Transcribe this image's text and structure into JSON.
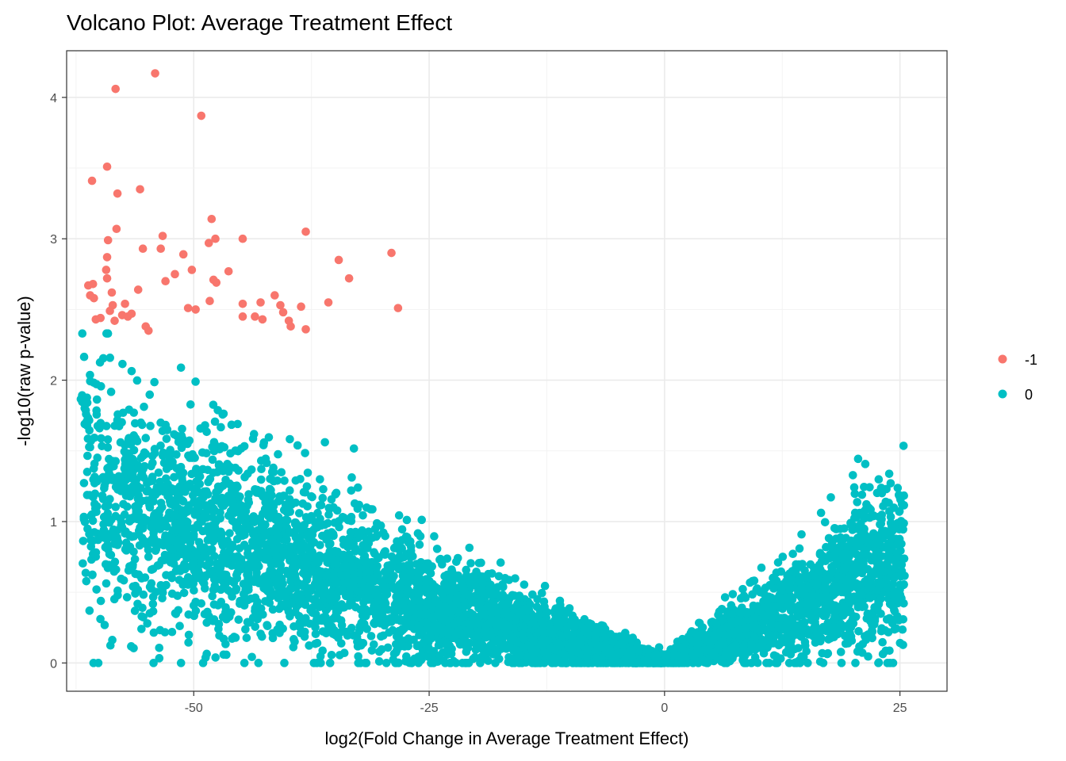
{
  "chart_data": {
    "type": "scatter",
    "title": "Volcano Plot: Average Treatment Effect",
    "xlabel": "log2(Fold Change in Average Treatment Effect)",
    "ylabel": "-log10(raw p-value)",
    "xlim": [
      -63.5,
      30
    ],
    "ylim": [
      -0.2,
      4.33
    ],
    "x_ticks": [
      -50,
      -25,
      0,
      25
    ],
    "x_tick_labels": [
      "-50",
      "-25",
      "0",
      "25"
    ],
    "y_ticks": [
      0,
      1,
      2,
      3,
      4
    ],
    "y_tick_labels": [
      "0",
      "1",
      "2",
      "3",
      "4"
    ],
    "grid": true,
    "legend_position": "right",
    "series": [
      {
        "name": "-1",
        "color": "#F8766D",
        "points": [
          [
            -54.1,
            4.17
          ],
          [
            -58.3,
            4.06
          ],
          [
            -49.2,
            3.87
          ],
          [
            -59.2,
            3.51
          ],
          [
            -60.8,
            3.41
          ],
          [
            -58.1,
            3.32
          ],
          [
            -55.7,
            3.35
          ],
          [
            -48.1,
            3.14
          ],
          [
            -58.2,
            3.07
          ],
          [
            -53.3,
            3.02
          ],
          [
            -47.7,
            3.0
          ],
          [
            -48.4,
            2.97
          ],
          [
            -59.1,
            2.99
          ],
          [
            -55.4,
            2.93
          ],
          [
            -53.5,
            2.93
          ],
          [
            -44.8,
            3.0
          ],
          [
            -38.1,
            3.05
          ],
          [
            -29.0,
            2.9
          ],
          [
            -34.6,
            2.85
          ],
          [
            -51.1,
            2.89
          ],
          [
            -59.2,
            2.87
          ],
          [
            -50.2,
            2.78
          ],
          [
            -59.3,
            2.78
          ],
          [
            -46.3,
            2.77
          ],
          [
            -52.0,
            2.75
          ],
          [
            -33.5,
            2.72
          ],
          [
            -59.2,
            2.72
          ],
          [
            -47.9,
            2.71
          ],
          [
            -47.6,
            2.69
          ],
          [
            -53.0,
            2.7
          ],
          [
            -60.7,
            2.68
          ],
          [
            -61.2,
            2.67
          ],
          [
            -61.0,
            2.6
          ],
          [
            -60.6,
            2.58
          ],
          [
            -58.7,
            2.62
          ],
          [
            -55.9,
            2.64
          ],
          [
            -48.3,
            2.56
          ],
          [
            -41.4,
            2.6
          ],
          [
            -42.9,
            2.55
          ],
          [
            -44.8,
            2.54
          ],
          [
            -40.8,
            2.53
          ],
          [
            -38.6,
            2.52
          ],
          [
            -35.7,
            2.55
          ],
          [
            -28.3,
            2.51
          ],
          [
            -57.3,
            2.54
          ],
          [
            -58.6,
            2.53
          ],
          [
            -50.6,
            2.51
          ],
          [
            -49.8,
            2.5
          ],
          [
            -58.9,
            2.49
          ],
          [
            -59.9,
            2.44
          ],
          [
            -57.6,
            2.46
          ],
          [
            -56.6,
            2.47
          ],
          [
            -44.8,
            2.45
          ],
          [
            -43.5,
            2.45
          ],
          [
            -40.5,
            2.48
          ],
          [
            -39.9,
            2.42
          ],
          [
            -42.7,
            2.43
          ],
          [
            -57.0,
            2.45
          ],
          [
            -58.4,
            2.42
          ],
          [
            -55.1,
            2.38
          ],
          [
            -54.8,
            2.35
          ],
          [
            -39.7,
            2.38
          ],
          [
            -38.1,
            2.36
          ],
          [
            -60.4,
            2.43
          ]
        ]
      },
      {
        "name": "0",
        "color": "#00BFC4",
        "points": []
      }
    ]
  }
}
